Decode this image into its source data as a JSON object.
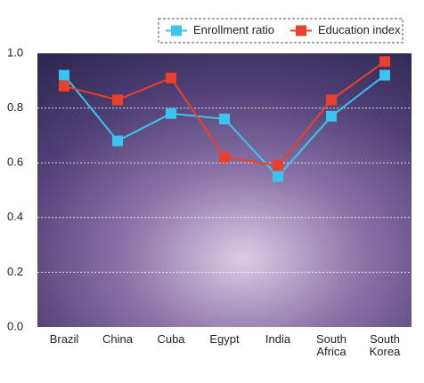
{
  "chart_data": {
    "type": "line",
    "categories": [
      "Brazil",
      "China",
      "Cuba",
      "Egypt",
      "India",
      "South Africa",
      "South Korea"
    ],
    "series": [
      {
        "name": "Enrollment ratio",
        "color": "#3cc4f0",
        "values": [
          0.92,
          0.68,
          0.78,
          0.76,
          0.55,
          0.77,
          0.92
        ]
      },
      {
        "name": "Education index",
        "color": "#e8412c",
        "values": [
          0.88,
          0.83,
          0.91,
          0.62,
          0.59,
          0.83,
          0.97
        ]
      }
    ],
    "ylim": [
      0,
      1
    ],
    "yticks": [
      {
        "value": 0,
        "label": "0.0"
      },
      0.2,
      0.4,
      0.6,
      0.8,
      {
        "value": 1,
        "label": "1.0"
      }
    ],
    "grid": true
  }
}
